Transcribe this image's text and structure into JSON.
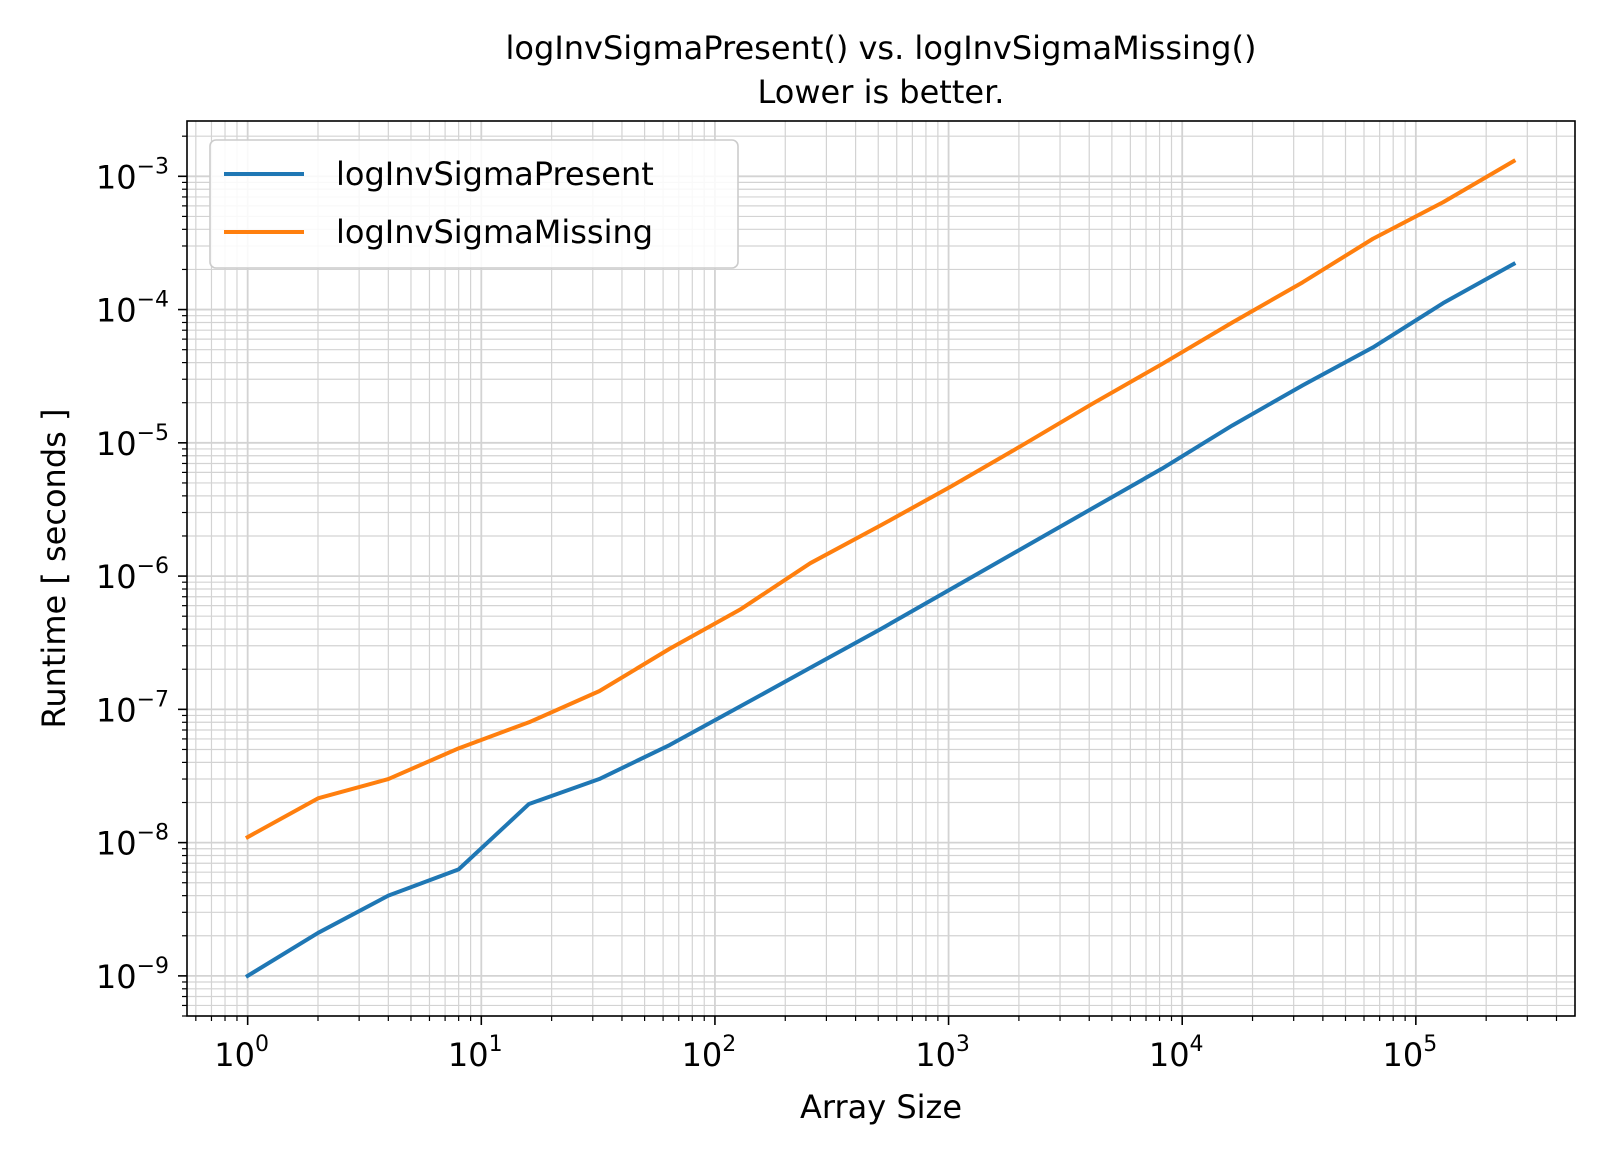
{
  "chart_data": {
    "type": "line",
    "title": "logInvSigmaPresent() vs. logInvSigmaMissing()",
    "subtitle": "Lower is better.",
    "xlabel": "Array Size",
    "ylabel": "Runtime [ seconds ]",
    "xscale": "log",
    "yscale": "log",
    "xlim": [
      0.55,
      480000
    ],
    "ylim": [
      5e-10,
      0.0026
    ],
    "x_ticks": [
      1,
      10,
      100,
      1000,
      10000,
      100000
    ],
    "x_tick_labels": [
      {
        "base": "10",
        "exp": "0"
      },
      {
        "base": "10",
        "exp": "1"
      },
      {
        "base": "10",
        "exp": "2"
      },
      {
        "base": "10",
        "exp": "3"
      },
      {
        "base": "10",
        "exp": "4"
      },
      {
        "base": "10",
        "exp": "5"
      }
    ],
    "y_ticks": [
      1e-09,
      1e-08,
      1e-07,
      1e-06,
      1e-05,
      0.0001,
      0.001
    ],
    "y_tick_labels": [
      {
        "base": "10",
        "exp": "−9"
      },
      {
        "base": "10",
        "exp": "−8"
      },
      {
        "base": "10",
        "exp": "−7"
      },
      {
        "base": "10",
        "exp": "−6"
      },
      {
        "base": "10",
        "exp": "−5"
      },
      {
        "base": "10",
        "exp": "−4"
      },
      {
        "base": "10",
        "exp": "−3"
      }
    ],
    "grid": true,
    "legend_position": "top-left",
    "x": [
      1,
      2,
      4,
      8,
      16,
      32,
      64,
      128,
      256,
      512,
      1024,
      2048,
      4096,
      8192,
      16384,
      32768,
      65536,
      131072,
      262144
    ],
    "series": [
      {
        "name": "logInvSigmaPresent",
        "color": "#1f77b4",
        "values": [
          1e-09,
          2.1e-09,
          4e-09,
          6.3e-09,
          1.95e-08,
          3e-08,
          5.4e-08,
          1.05e-07,
          2.05e-07,
          4e-07,
          8e-07,
          1.6e-06,
          3.2e-06,
          6.4e-06,
          1.35e-05,
          2.7e-05,
          5.2e-05,
          0.000112,
          0.00022
        ]
      },
      {
        "name": "logInvSigmaMissing",
        "color": "#ff7f0e",
        "values": [
          1.1e-08,
          2.15e-08,
          3e-08,
          5.1e-08,
          8e-08,
          1.37e-07,
          2.85e-07,
          5.6e-07,
          1.25e-06,
          2.4e-06,
          4.7e-06,
          9.5e-06,
          1.95e-05,
          3.9e-05,
          8e-05,
          0.00016,
          0.00034,
          0.00064,
          0.0013
        ]
      }
    ]
  }
}
